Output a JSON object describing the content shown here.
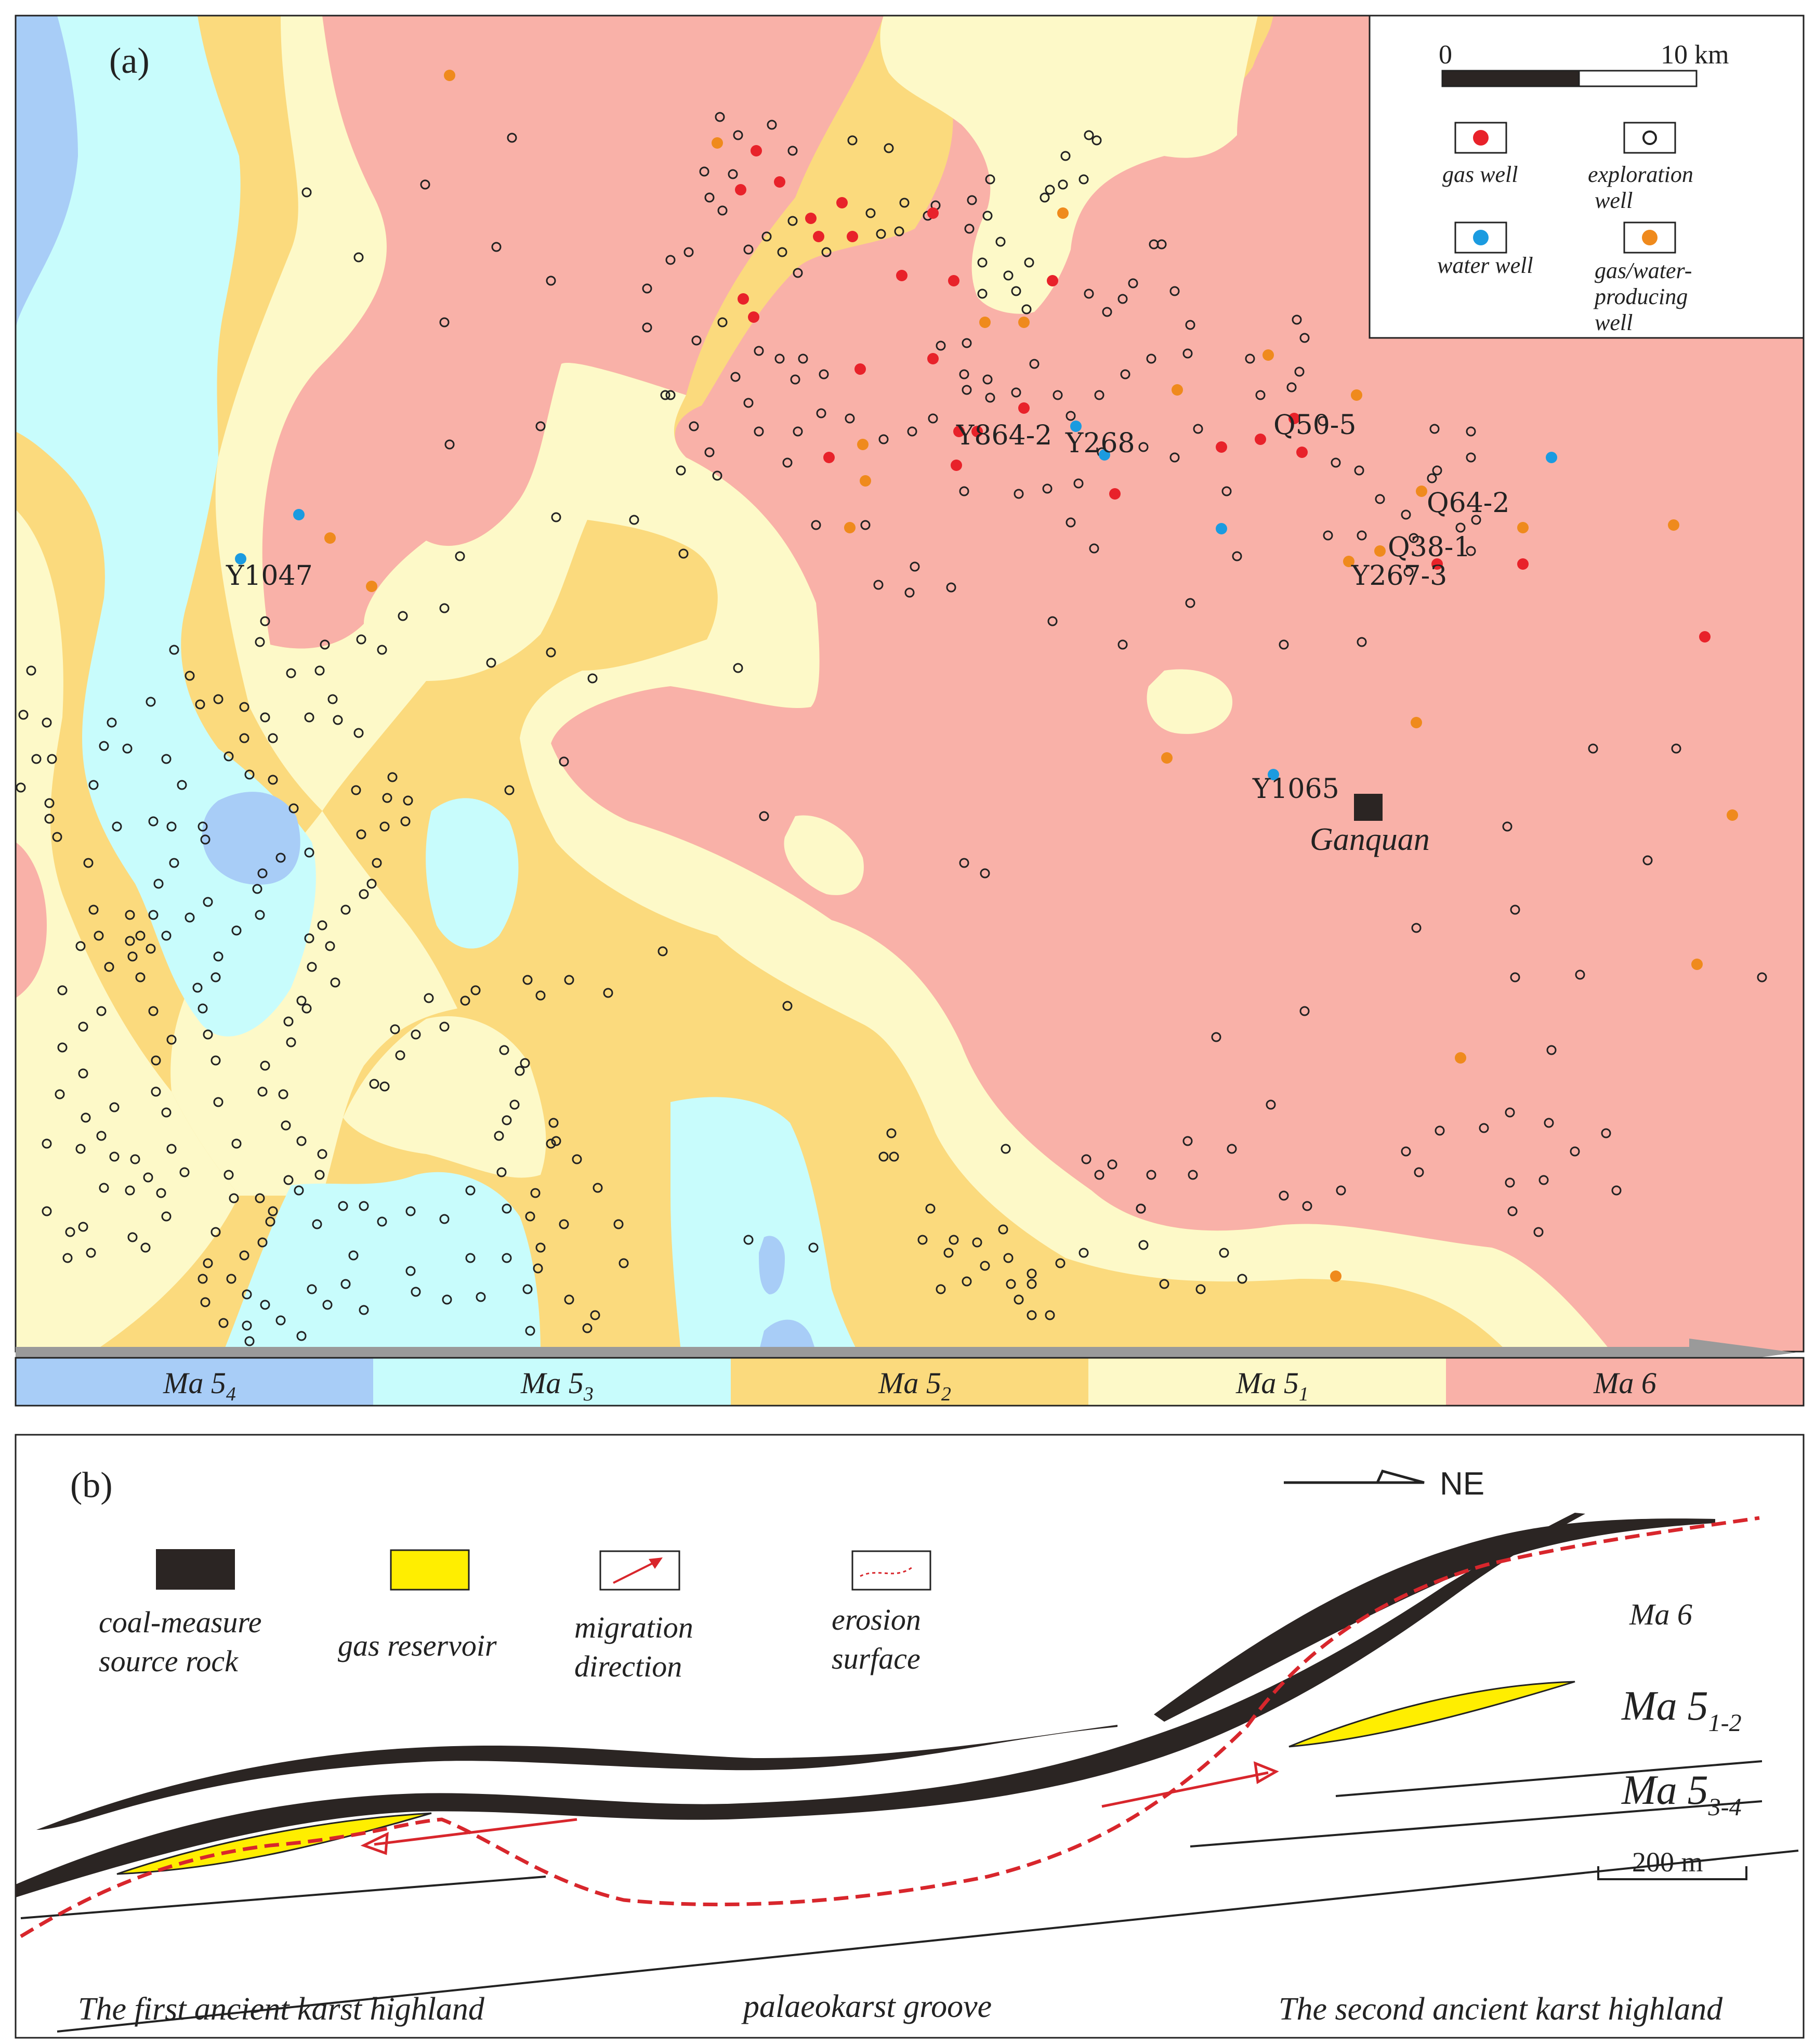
{
  "panel_a": {
    "label": "(a)",
    "legend": {
      "scale_zero": "0",
      "scale_max": "10 km",
      "gas_well": "gas well",
      "exploration_line1": "exploration",
      "exploration_line2": "well",
      "water_well": "water well",
      "gw_line1": "gas/water-",
      "gw_line2": "producing",
      "gw_line3": "well"
    },
    "well_labels": {
      "y864_2": "Y864-2",
      "y268": "Y268",
      "q50_5": "Q50-5",
      "q64_2": "Q64-2",
      "q38_1": "Q38-1",
      "y267_3": "Y267-3",
      "y1047": "Y1047",
      "y1065": "Y1065"
    },
    "town": "Ganquan",
    "strata_bar": [
      {
        "main": "Ma 5",
        "sub": "4",
        "color": "#a8cdf7"
      },
      {
        "main": "Ma 5",
        "sub": "3",
        "color": "#c8fcfc"
      },
      {
        "main": "Ma 5",
        "sub": "2",
        "color": "#fbda7d"
      },
      {
        "main": "Ma 5",
        "sub": "1",
        "color": "#fdf9c8"
      },
      {
        "main": "Ma 6",
        "sub": "",
        "color": "#f9b1a8"
      }
    ],
    "colors": {
      "ma6": "#f9b1a8",
      "ma5_1": "#fdf9c8",
      "ma5_2": "#fbda7d",
      "ma5_3": "#c8fcfc",
      "ma5_4": "#a8cdf7",
      "gas_well": "#e8222a",
      "water_well": "#1b9be0",
      "gas_water_well": "#ef8a1d",
      "exploration_well": "#222222"
    }
  },
  "panel_b": {
    "label": "(b)",
    "north": "NE",
    "legend": {
      "coal_line1": "coal-measure",
      "coal_line2": "source rock",
      "gas_reservoir": "gas reservoir",
      "migration_line1": "migration",
      "migration_line2": "direction",
      "erosion_line1": "erosion",
      "erosion_line2": "surface"
    },
    "units": {
      "ma6": "Ma 6",
      "ma5_12_main": "Ma 5",
      "ma5_12_sub": "1-2",
      "ma5_34_main": "Ma 5",
      "ma5_34_sub": "3-4"
    },
    "scale": "200 m",
    "bottom_labels": {
      "left": "The first ancient karst highland",
      "middle": "palaeokarst groove",
      "right": "The second ancient karst highland"
    },
    "colors": {
      "coal": "#2b2523",
      "reservoir": "#ffee00",
      "migration": "#d8262c",
      "erosion": "#d8262c"
    }
  }
}
